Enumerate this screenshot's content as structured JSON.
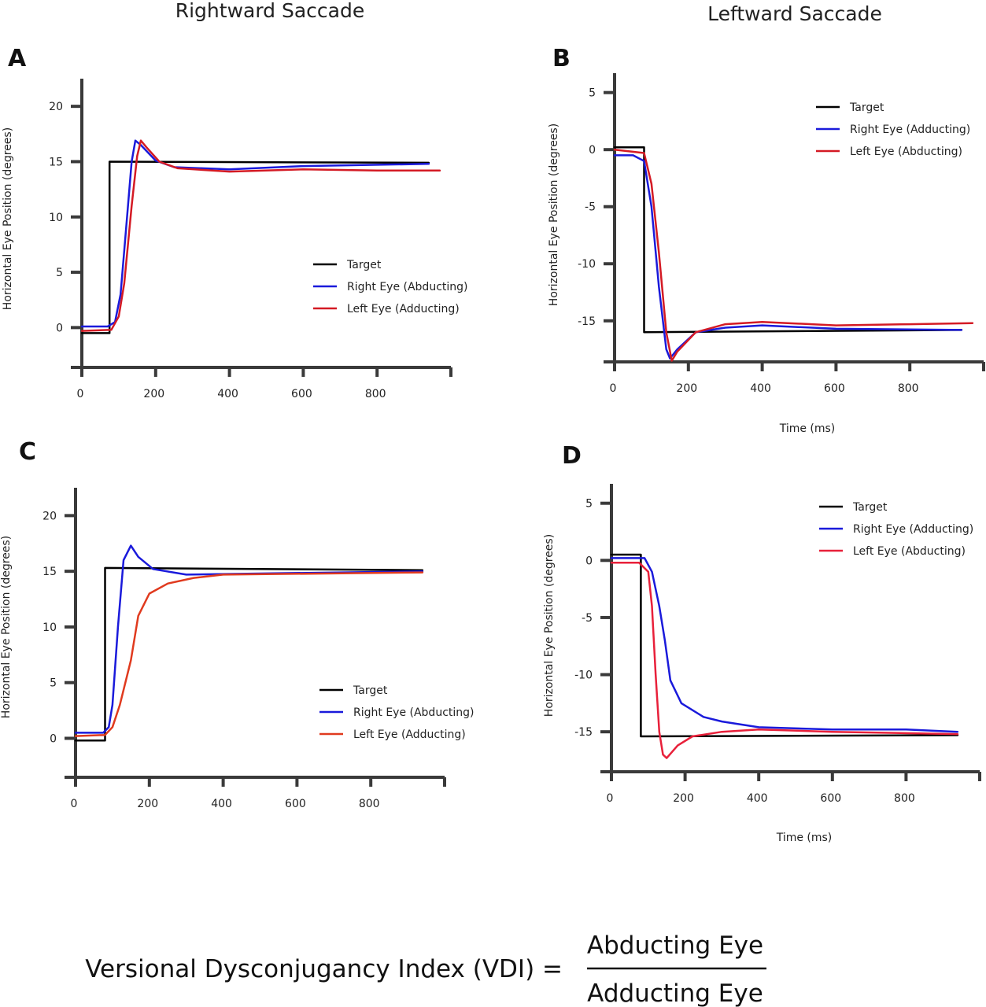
{
  "titles": {
    "left": "Rightward Saccade",
    "right": "Leftward Saccade"
  },
  "formula": {
    "lhs": "Versional Dysconjugancy Index (VDI) =",
    "numerator": "Abducting Eye",
    "denominator": "Adducting Eye"
  },
  "chart_data": [
    {
      "panel": "A",
      "type": "line",
      "xlabel": "",
      "ylabel": "Horizontal Eye Position (degrees)",
      "xlim": [
        0,
        1000
      ],
      "ylim": [
        -3.6,
        22.5
      ],
      "xticks": [
        0,
        200,
        400,
        600,
        800
      ],
      "yticks": [
        0,
        5,
        10,
        15,
        20
      ],
      "legend": "right-middle",
      "grid": false,
      "series": [
        {
          "name": "Target",
          "color": "#000000",
          "x": [
            0,
            75,
            75,
            940
          ],
          "y": [
            -0.5,
            -0.5,
            15,
            14.9
          ]
        },
        {
          "name": "Right Eye (Abducting)",
          "color": "#1a1adb",
          "x": [
            0,
            70,
            90,
            105,
            120,
            135,
            145,
            160,
            200,
            250,
            400,
            600,
            940
          ],
          "y": [
            0.1,
            0.1,
            0.5,
            3,
            9,
            15,
            16.9,
            16.5,
            15.1,
            14.5,
            14.3,
            14.6,
            14.8
          ]
        },
        {
          "name": "Left Eye (Adducting)",
          "color": "#d41a24",
          "x": [
            0,
            80,
            100,
            115,
            135,
            150,
            160,
            175,
            210,
            260,
            400,
            600,
            800,
            970
          ],
          "y": [
            -0.3,
            -0.2,
            1,
            4,
            11,
            15.5,
            16.9,
            16.3,
            15,
            14.4,
            14.1,
            14.3,
            14.2,
            14.2
          ]
        }
      ]
    },
    {
      "panel": "B",
      "type": "line",
      "xlabel": "Time (ms)",
      "ylabel": "Horizontal Eye Position (degrees)",
      "xlim": [
        0,
        1000
      ],
      "ylim": [
        -18.6,
        6.7
      ],
      "xticks": [
        0,
        200,
        400,
        600,
        800
      ],
      "yticks": [
        5,
        0,
        -5,
        -10,
        -15
      ],
      "legend": "top-right",
      "grid": false,
      "series": [
        {
          "name": "Target",
          "color": "#000000",
          "x": [
            0,
            80,
            80,
            940
          ],
          "y": [
            0.2,
            0.2,
            -16,
            -15.8
          ]
        },
        {
          "name": "Right Eye (Adducting)",
          "color": "#1a1adb",
          "x": [
            0,
            50,
            80,
            100,
            120,
            140,
            150,
            170,
            220,
            300,
            400,
            600,
            940
          ],
          "y": [
            -0.5,
            -0.5,
            -1,
            -5,
            -12,
            -17.5,
            -18.3,
            -17.5,
            -16,
            -15.6,
            -15.4,
            -15.7,
            -15.8
          ]
        },
        {
          "name": "Left Eye (Abducting)",
          "color": "#d41a24",
          "x": [
            0,
            80,
            100,
            120,
            140,
            155,
            170,
            220,
            300,
            400,
            600,
            800,
            970
          ],
          "y": [
            0,
            -0.3,
            -3,
            -9,
            -16,
            -18.5,
            -17.7,
            -16,
            -15.3,
            -15.1,
            -15.4,
            -15.3,
            -15.2
          ]
        }
      ]
    },
    {
      "panel": "C",
      "type": "line",
      "xlabel": "",
      "ylabel": "Horizontal Eye Position (degrees)",
      "xlim": [
        0,
        1000
      ],
      "ylim": [
        -3.5,
        22.5
      ],
      "xticks": [
        0,
        200,
        400,
        600,
        800
      ],
      "yticks": [
        0,
        5,
        10,
        15,
        20
      ],
      "legend": "right-bottom",
      "grid": false,
      "series": [
        {
          "name": "Target",
          "color": "#000000",
          "x": [
            0,
            80,
            80,
            940
          ],
          "y": [
            -0.2,
            -0.2,
            15.3,
            15.1
          ]
        },
        {
          "name": "Right Eye (Abducting)",
          "color": "#1a1adb",
          "x": [
            0,
            75,
            90,
            100,
            115,
            130,
            150,
            170,
            210,
            300,
            500,
            940
          ],
          "y": [
            0.5,
            0.5,
            1,
            3,
            10,
            16,
            17.3,
            16.3,
            15.2,
            14.7,
            14.8,
            15.0
          ]
        },
        {
          "name": "Left Eye (Adducting)",
          "color": "#e03a1e",
          "x": [
            0,
            80,
            100,
            120,
            150,
            170,
            200,
            250,
            320,
            400,
            940
          ],
          "y": [
            0.2,
            0.3,
            1,
            3,
            7,
            11,
            13,
            13.9,
            14.4,
            14.7,
            14.9
          ]
        }
      ]
    },
    {
      "panel": "D",
      "type": "line",
      "xlabel": "Time (ms)",
      "ylabel": "Horizontal Eye Position (degrees)",
      "xlim": [
        0,
        1000
      ],
      "ylim": [
        -18.5,
        6.7
      ],
      "xticks": [
        0,
        200,
        400,
        600,
        800
      ],
      "yticks": [
        5,
        0,
        -5,
        -10,
        -15
      ],
      "legend": "top-right",
      "grid": false,
      "series": [
        {
          "name": "Target",
          "color": "#000000",
          "x": [
            0,
            80,
            80,
            940
          ],
          "y": [
            0.5,
            0.5,
            -15.4,
            -15.3
          ]
        },
        {
          "name": "Right Eye (Adducting)",
          "color": "#1a1adb",
          "x": [
            0,
            90,
            110,
            130,
            145,
            160,
            190,
            250,
            300,
            400,
            600,
            800,
            940
          ],
          "y": [
            0.2,
            0.2,
            -1,
            -4,
            -7,
            -10.5,
            -12.5,
            -13.7,
            -14.1,
            -14.6,
            -14.8,
            -14.8,
            -15
          ]
        },
        {
          "name": "Left Eye (Abducting)",
          "color": "#e8203a",
          "x": [
            0,
            75,
            100,
            110,
            120,
            130,
            140,
            150,
            180,
            220,
            300,
            400,
            600,
            940
          ],
          "y": [
            -0.2,
            -0.2,
            -1,
            -4,
            -10,
            -15,
            -17,
            -17.3,
            -16.2,
            -15.4,
            -15,
            -14.8,
            -15,
            -15.2
          ]
        }
      ]
    }
  ]
}
